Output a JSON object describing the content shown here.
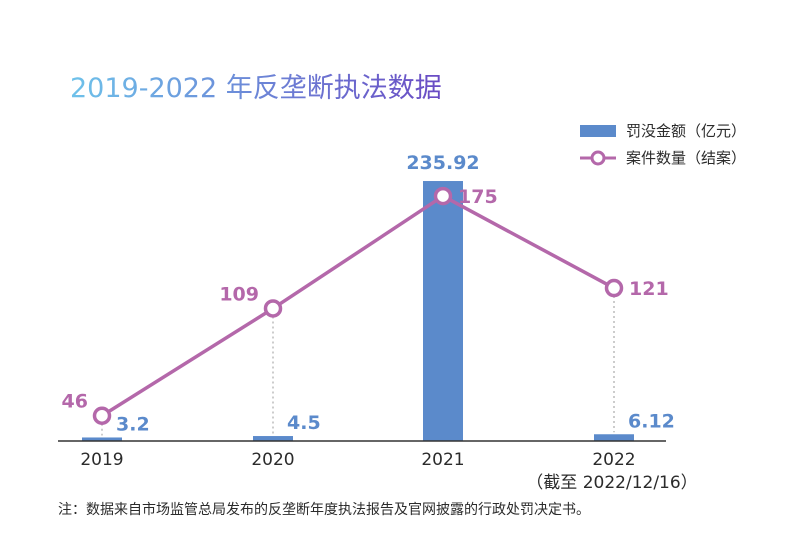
{
  "colors": {
    "bar": "#5b8acb",
    "line": "#b468aa",
    "title_start": "#6ec2ea",
    "title_end": "#6a4bc4",
    "axis": "#333333",
    "guide": "#9a9a9a"
  },
  "chart_data": {
    "type": "bar",
    "title": "2019-2022 年反垄断执法数据",
    "categories": [
      "2019",
      "2020",
      "2021",
      "2022"
    ],
    "category_sublabel": [
      "",
      "",
      "",
      "（截至 2022/12/16）"
    ],
    "series": [
      {
        "name": "罚没金额（亿元）",
        "kind": "bar",
        "axis": "left",
        "values": [
          3.2,
          4.5,
          235.92,
          6.12
        ],
        "labels": [
          "3.2",
          "4.5",
          "235.92",
          "6.12"
        ]
      },
      {
        "name": "案件数量（结案）",
        "kind": "line",
        "axis": "right",
        "values": [
          46,
          109,
          175,
          121
        ],
        "labels": [
          "46",
          "109",
          "175",
          "121"
        ]
      }
    ],
    "y_left_range": [
      0,
      255
    ],
    "y_right_range": [
      20,
      215
    ],
    "grid": false,
    "legend": "top-right",
    "note": "注：数据来自市场监管总局发布的反垄断年度执法报告及官网披露的行政处罚决定书。"
  }
}
